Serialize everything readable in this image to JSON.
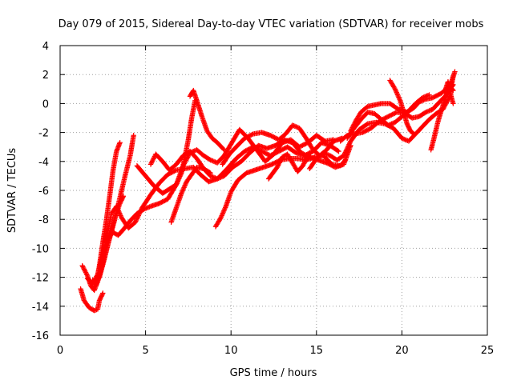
{
  "chart_data": {
    "type": "scatter",
    "title": "Day 079 of 2015, Sidereal Day-to-day VTEC variation (SDTVAR) for receiver mobs",
    "xlabel": "GPS time / hours",
    "ylabel": "SDTVAR / TECUs",
    "xlim": [
      0,
      25
    ],
    "ylim": [
      -16,
      4
    ],
    "x_ticks": [
      "0",
      "5",
      "10",
      "15",
      "20",
      "25"
    ],
    "y_ticks": [
      "-16",
      "-14",
      "-12",
      "-10",
      "-8",
      "-6",
      "-4",
      "-2",
      "0",
      "2",
      "4"
    ],
    "grid": true,
    "legend": "none",
    "marker": "plus",
    "color": "#ff0000",
    "series": [
      {
        "points": [
          [
            1.2,
            -12.8
          ],
          [
            1.4,
            -13.6
          ],
          [
            1.7,
            -14.1
          ],
          [
            2.0,
            -14.3
          ],
          [
            2.2,
            -14.2
          ],
          [
            2.3,
            -13.6
          ],
          [
            2.5,
            -13.1
          ]
        ]
      },
      {
        "points": [
          [
            1.3,
            -11.2
          ],
          [
            1.6,
            -11.9
          ],
          [
            1.8,
            -12.6
          ],
          [
            2.0,
            -12.9
          ],
          [
            2.2,
            -12.3
          ],
          [
            2.4,
            -11.4
          ],
          [
            2.6,
            -10.2
          ],
          [
            2.8,
            -8.8
          ],
          [
            3.0,
            -7.6
          ],
          [
            3.3,
            -7.1
          ],
          [
            3.6,
            -7.9
          ],
          [
            4.0,
            -8.6
          ],
          [
            4.4,
            -8.2
          ],
          [
            4.8,
            -7.2
          ],
          [
            5.3,
            -6.3
          ],
          [
            5.8,
            -5.5
          ],
          [
            6.3,
            -4.9
          ],
          [
            6.8,
            -4.6
          ],
          [
            7.3,
            -4.5
          ],
          [
            7.8,
            -4.4
          ],
          [
            8.2,
            -4.9
          ],
          [
            8.7,
            -5.4
          ],
          [
            9.2,
            -5.2
          ],
          [
            9.7,
            -4.6
          ],
          [
            10.3,
            -3.8
          ],
          [
            10.8,
            -3.3
          ],
          [
            11.3,
            -3.0
          ],
          [
            11.8,
            -3.3
          ],
          [
            12.3,
            -3.6
          ],
          [
            12.8,
            -3.3
          ],
          [
            13.3,
            -3.0
          ],
          [
            13.8,
            -3.4
          ],
          [
            14.3,
            -3.6
          ],
          [
            14.8,
            -3.3
          ],
          [
            15.3,
            -2.7
          ],
          [
            15.8,
            -2.9
          ],
          [
            16.3,
            -3.3
          ]
        ]
      },
      {
        "points": [
          [
            1.6,
            -12.1
          ],
          [
            1.9,
            -12.4
          ],
          [
            2.2,
            -11.8
          ],
          [
            2.5,
            -10.4
          ],
          [
            2.8,
            -9.3
          ],
          [
            3.1,
            -8.9
          ],
          [
            3.4,
            -9.1
          ],
          [
            3.7,
            -8.7
          ],
          [
            4.1,
            -8.1
          ],
          [
            4.5,
            -7.6
          ],
          [
            4.9,
            -7.3
          ],
          [
            5.3,
            -7.1
          ],
          [
            5.8,
            -6.9
          ],
          [
            6.3,
            -6.6
          ],
          [
            6.8,
            -5.6
          ],
          [
            7.2,
            -4.3
          ],
          [
            7.6,
            -3.4
          ],
          [
            8.0,
            -3.2
          ],
          [
            8.4,
            -3.6
          ],
          [
            8.8,
            -3.9
          ],
          [
            9.2,
            -4.1
          ],
          [
            9.6,
            -3.6
          ],
          [
            10.1,
            -2.6
          ],
          [
            10.5,
            -1.8
          ],
          [
            11.0,
            -2.4
          ],
          [
            11.5,
            -3.2
          ],
          [
            12.0,
            -4.0
          ],
          [
            12.5,
            -3.5
          ],
          [
            13.0,
            -2.7
          ],
          [
            13.5,
            -2.5
          ],
          [
            14.0,
            -3.0
          ],
          [
            14.5,
            -2.7
          ],
          [
            15.0,
            -2.2
          ],
          [
            15.5,
            -2.6
          ],
          [
            16.0,
            -2.5
          ]
        ]
      },
      {
        "points": [
          [
            1.9,
            -12.2
          ],
          [
            2.1,
            -12.5
          ],
          [
            2.3,
            -11.2
          ],
          [
            2.5,
            -9.6
          ],
          [
            2.7,
            -8.1
          ],
          [
            2.9,
            -6.4
          ],
          [
            3.1,
            -4.6
          ],
          [
            3.3,
            -3.3
          ],
          [
            3.5,
            -2.7
          ]
        ]
      },
      {
        "points": [
          [
            2.0,
            -12.4
          ],
          [
            2.3,
            -11.9
          ],
          [
            2.6,
            -10.6
          ],
          [
            2.9,
            -9.3
          ],
          [
            3.2,
            -8.0
          ],
          [
            3.5,
            -6.5
          ],
          [
            3.8,
            -5.0
          ],
          [
            4.1,
            -3.6
          ],
          [
            4.3,
            -2.2
          ]
        ]
      },
      {
        "points": [
          [
            2.0,
            -12.6
          ],
          [
            2.3,
            -12.0
          ],
          [
            2.6,
            -10.7
          ],
          [
            2.9,
            -9.2
          ],
          [
            3.2,
            -7.9
          ],
          [
            3.5,
            -6.9
          ],
          [
            3.7,
            -6.4
          ]
        ]
      },
      {
        "points": [
          [
            4.5,
            -4.3
          ],
          [
            5.0,
            -5.0
          ],
          [
            5.5,
            -5.7
          ],
          [
            6.0,
            -6.2
          ],
          [
            6.4,
            -5.9
          ],
          [
            6.8,
            -5.6
          ],
          [
            7.1,
            -4.8
          ],
          [
            7.3,
            -3.7
          ],
          [
            7.5,
            -2.5
          ],
          [
            7.7,
            -1.0
          ],
          [
            7.9,
            0.2
          ]
        ]
      },
      {
        "points": [
          [
            5.3,
            -4.2
          ],
          [
            5.6,
            -3.5
          ],
          [
            6.0,
            -4.0
          ],
          [
            6.4,
            -4.6
          ],
          [
            6.8,
            -4.2
          ],
          [
            7.2,
            -3.6
          ],
          [
            7.6,
            -3.3
          ],
          [
            8.0,
            -3.8
          ],
          [
            8.4,
            -4.5
          ],
          [
            8.8,
            -5.0
          ],
          [
            9.2,
            -5.2
          ],
          [
            9.6,
            -5.0
          ],
          [
            10.1,
            -4.4
          ],
          [
            10.6,
            -4.0
          ],
          [
            11.1,
            -3.4
          ],
          [
            11.6,
            -2.9
          ],
          [
            12.1,
            -3.1
          ],
          [
            12.6,
            -2.9
          ],
          [
            13.1,
            -2.5
          ],
          [
            13.6,
            -2.7
          ],
          [
            14.1,
            -3.4
          ],
          [
            14.6,
            -3.7
          ],
          [
            15.1,
            -3.9
          ],
          [
            15.6,
            -4.1
          ],
          [
            16.1,
            -4.4
          ],
          [
            16.6,
            -4.2
          ],
          [
            17.0,
            -2.9
          ]
        ]
      },
      {
        "points": [
          [
            6.5,
            -8.2
          ],
          [
            6.8,
            -7.2
          ],
          [
            7.1,
            -6.2
          ],
          [
            7.4,
            -5.4
          ],
          [
            7.7,
            -4.9
          ],
          [
            8.0,
            -4.4
          ],
          [
            8.4,
            -4.5
          ],
          [
            8.8,
            -4.8
          ]
        ]
      },
      {
        "points": [
          [
            7.6,
            0.5
          ],
          [
            7.8,
            0.9
          ],
          [
            8.0,
            0.2
          ],
          [
            8.3,
            -0.9
          ],
          [
            8.6,
            -1.9
          ],
          [
            8.9,
            -2.4
          ],
          [
            9.2,
            -2.7
          ],
          [
            9.6,
            -3.2
          ]
        ]
      },
      {
        "points": [
          [
            9.1,
            -8.5
          ],
          [
            9.4,
            -7.9
          ],
          [
            9.7,
            -7.1
          ],
          [
            10.0,
            -6.1
          ],
          [
            10.4,
            -5.3
          ],
          [
            10.9,
            -4.8
          ],
          [
            11.4,
            -4.6
          ],
          [
            11.9,
            -4.4
          ],
          [
            12.4,
            -4.2
          ],
          [
            12.9,
            -3.9
          ],
          [
            13.4,
            -3.8
          ],
          [
            13.9,
            -3.8
          ],
          [
            14.4,
            -3.9
          ],
          [
            14.9,
            -3.7
          ],
          [
            15.4,
            -3.6
          ],
          [
            15.9,
            -4.2
          ],
          [
            16.4,
            -4.3
          ],
          [
            16.7,
            -3.9
          ]
        ]
      },
      {
        "points": [
          [
            9.5,
            -4.2
          ],
          [
            9.9,
            -3.5
          ],
          [
            10.3,
            -3.0
          ],
          [
            10.8,
            -2.4
          ],
          [
            11.3,
            -2.1
          ],
          [
            11.8,
            -2.0
          ],
          [
            12.3,
            -2.2
          ],
          [
            12.8,
            -2.5
          ],
          [
            13.2,
            -2.1
          ],
          [
            13.6,
            -1.5
          ],
          [
            14.0,
            -1.7
          ],
          [
            14.4,
            -2.4
          ],
          [
            14.8,
            -3.2
          ],
          [
            15.2,
            -3.6
          ],
          [
            15.6,
            -3.2
          ],
          [
            16.0,
            -2.6
          ],
          [
            16.5,
            -2.4
          ]
        ]
      },
      {
        "points": [
          [
            12.2,
            -5.2
          ],
          [
            12.7,
            -4.4
          ],
          [
            13.0,
            -3.7
          ],
          [
            13.3,
            -3.5
          ],
          [
            13.6,
            -4.1
          ],
          [
            13.9,
            -4.7
          ],
          [
            14.2,
            -4.3
          ],
          [
            14.6,
            -3.4
          ]
        ]
      },
      {
        "points": [
          [
            14.6,
            -4.5
          ],
          [
            15.0,
            -3.8
          ],
          [
            15.4,
            -3.4
          ],
          [
            15.8,
            -3.6
          ],
          [
            16.2,
            -3.9
          ],
          [
            16.6,
            -3.6
          ],
          [
            17.0,
            -2.6
          ],
          [
            17.5,
            -1.8
          ],
          [
            18.0,
            -1.4
          ],
          [
            18.5,
            -1.3
          ],
          [
            19.0,
            -1.4
          ],
          [
            19.5,
            -1.7
          ],
          [
            20.0,
            -2.4
          ],
          [
            20.4,
            -2.6
          ],
          [
            20.8,
            -2.1
          ],
          [
            21.2,
            -1.6
          ],
          [
            21.6,
            -1.1
          ],
          [
            22.0,
            -0.7
          ],
          [
            22.4,
            -0.4
          ],
          [
            22.8,
            0.5
          ],
          [
            23.0,
            1.9
          ]
        ]
      },
      {
        "points": [
          [
            16.4,
            -2.6
          ],
          [
            16.8,
            -2.2
          ],
          [
            17.2,
            -2.1
          ],
          [
            17.7,
            -2.0
          ],
          [
            18.2,
            -1.7
          ],
          [
            18.7,
            -1.2
          ],
          [
            19.2,
            -0.9
          ],
          [
            19.7,
            -0.6
          ],
          [
            20.2,
            -0.7
          ],
          [
            20.6,
            -1.0
          ],
          [
            21.0,
            -0.9
          ],
          [
            21.4,
            -0.6
          ],
          [
            21.8,
            -0.4
          ],
          [
            22.2,
            0.1
          ],
          [
            22.6,
            0.6
          ],
          [
            23.0,
            1.3
          ]
        ]
      },
      {
        "points": [
          [
            17.0,
            -1.9
          ],
          [
            17.3,
            -1.2
          ],
          [
            17.6,
            -0.6
          ],
          [
            18.0,
            -0.2
          ],
          [
            18.4,
            -0.1
          ],
          [
            18.8,
            0.0
          ],
          [
            19.3,
            0.0
          ],
          [
            19.8,
            -0.4
          ],
          [
            20.3,
            -0.6
          ],
          [
            20.7,
            -0.3
          ],
          [
            21.0,
            0.1
          ],
          [
            21.4,
            0.3
          ],
          [
            21.8,
            0.4
          ],
          [
            22.3,
            0.7
          ],
          [
            22.8,
            1.2
          ],
          [
            23.0,
            0.9
          ]
        ]
      },
      {
        "points": [
          [
            16.8,
            -2.4
          ],
          [
            17.2,
            -1.7
          ],
          [
            17.6,
            -1.1
          ],
          [
            18.0,
            -0.6
          ],
          [
            18.4,
            -0.7
          ],
          [
            18.8,
            -1.1
          ],
          [
            19.2,
            -1.5
          ],
          [
            19.6,
            -1.3
          ],
          [
            20.0,
            -0.9
          ],
          [
            20.4,
            -0.5
          ],
          [
            20.8,
            0.0
          ],
          [
            21.2,
            0.4
          ],
          [
            21.6,
            0.6
          ]
        ]
      },
      {
        "points": [
          [
            19.3,
            1.6
          ],
          [
            19.6,
            1.0
          ],
          [
            19.9,
            0.2
          ],
          [
            20.1,
            -0.6
          ],
          [
            20.3,
            -1.4
          ],
          [
            20.5,
            -1.9
          ],
          [
            20.7,
            -2.1
          ]
        ]
      },
      {
        "points": [
          [
            21.7,
            -3.2
          ],
          [
            21.9,
            -2.3
          ],
          [
            22.1,
            -1.3
          ],
          [
            22.3,
            -0.5
          ],
          [
            22.5,
            0.2
          ],
          [
            22.7,
            0.8
          ],
          [
            22.9,
            1.5
          ],
          [
            23.1,
            2.2
          ]
        ]
      },
      {
        "points": [
          [
            22.5,
            0.8
          ],
          [
            22.7,
            1.5
          ],
          [
            22.8,
            1.0
          ],
          [
            22.9,
            0.4
          ],
          [
            23.0,
            0.0
          ]
        ]
      }
    ]
  }
}
